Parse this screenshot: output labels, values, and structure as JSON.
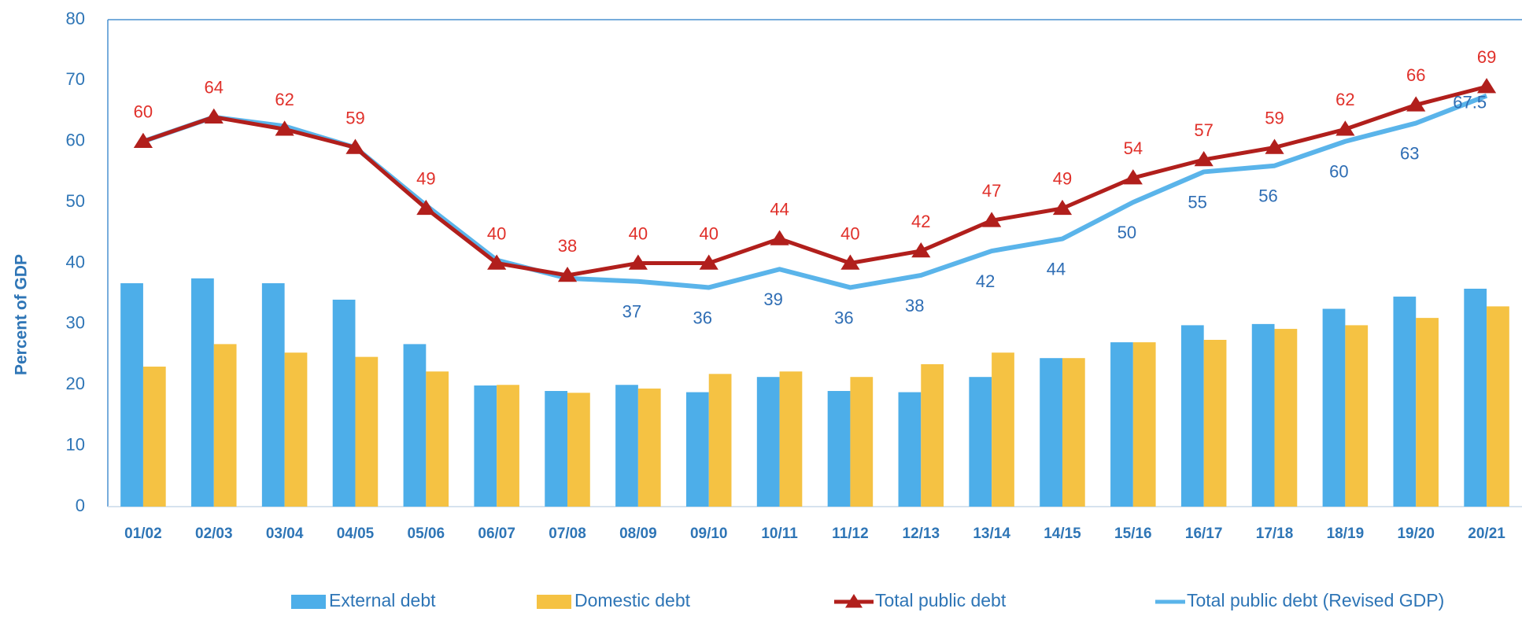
{
  "chart_data": {
    "type": "bar-line",
    "y_label": "Percent  of GDP",
    "categories": [
      "01/02",
      "02/03",
      "03/04",
      "04/05",
      "05/06",
      "06/07",
      "07/08",
      "08/09",
      "09/10",
      "10/11",
      "11/12",
      "12/13",
      "13/14",
      "14/15",
      "15/16",
      "16/17",
      "17/18",
      "18/19",
      "19/20",
      "20/21"
    ],
    "ylim": [
      0,
      80
    ],
    "yticks": [
      0,
      10,
      20,
      30,
      40,
      50,
      60,
      70,
      80
    ],
    "grid": false,
    "legend": "bottom",
    "series": [
      {
        "name": "External debt",
        "kind": "bar",
        "color": "#4daee9",
        "values": [
          36.7,
          37.5,
          36.7,
          34,
          26.7,
          19.9,
          19,
          20,
          18.8,
          21.3,
          19,
          18.8,
          21.3,
          24.4,
          27,
          29.8,
          30,
          32.5,
          34.5,
          35.8
        ]
      },
      {
        "name": "Domestic debt",
        "kind": "bar",
        "color": "#f5c243",
        "values": [
          23,
          26.7,
          25.3,
          24.6,
          22.2,
          20,
          18.7,
          19.4,
          21.8,
          22.2,
          21.3,
          23.4,
          25.3,
          24.4,
          27,
          27.4,
          29.2,
          29.8,
          31,
          32.9
        ]
      },
      {
        "name": "Total public debt",
        "kind": "line",
        "color": "#b11f1c",
        "label_color": "#e0302a",
        "values": [
          60,
          64,
          62,
          59,
          49,
          40,
          38,
          40,
          40,
          44,
          40,
          42,
          47,
          49,
          54,
          57,
          59,
          62,
          66,
          69
        ]
      },
      {
        "name": "Total public debt (Revised GDP)",
        "kind": "line",
        "color": "#5ab4ea",
        "label_color": "#2e6db4",
        "values": [
          60,
          64,
          62.5,
          59,
          49.5,
          40.5,
          37.5,
          37,
          36,
          39,
          36,
          38,
          42,
          44,
          50,
          55,
          56,
          60,
          63,
          67.5
        ],
        "value_labels": [
          null,
          null,
          null,
          null,
          null,
          null,
          null,
          "37",
          "36",
          "39",
          "36",
          "38",
          "42",
          "44",
          "50",
          "55",
          "56",
          "60",
          "63",
          "67.5"
        ]
      }
    ]
  }
}
